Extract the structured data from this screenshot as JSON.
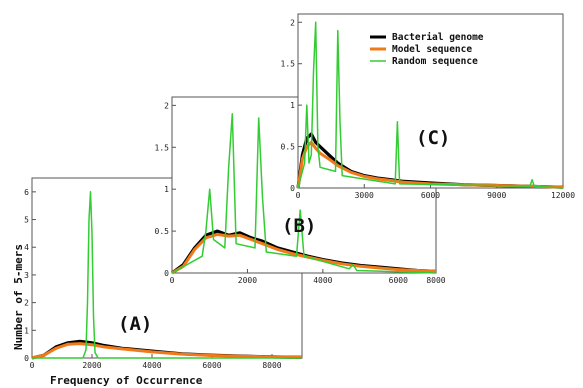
{
  "figure": {
    "xlabel": "Frequency of Occurrence",
    "ylabel": "Number of 5-mers"
  },
  "legend": {
    "entries": [
      {
        "label": "Bacterial genome",
        "color": "#000000"
      },
      {
        "label": "Model sequence",
        "color": "#f07a1a"
      },
      {
        "label": "Random sequence",
        "color": "#33cc33"
      }
    ]
  },
  "colors": {
    "genome": "#000000",
    "model": "#f07a1a",
    "random": "#33cc33"
  },
  "chart_data": [
    {
      "type": "line",
      "panel_label": "(A)",
      "xlim": [
        0,
        9000
      ],
      "ylim": [
        0,
        6.5
      ],
      "xticks": [
        "0",
        "2000",
        "4000",
        "6000",
        "8000"
      ],
      "yticks": [
        "0",
        "1",
        "2",
        "3",
        "4",
        "5",
        "6"
      ],
      "series": [
        {
          "name": "Bacterial genome",
          "x": [
            0,
            400,
            800,
            1200,
            1600,
            2000,
            2400,
            3000,
            4000,
            5000,
            6000,
            7000,
            8000,
            9000
          ],
          "values": [
            0,
            0.1,
            0.4,
            0.55,
            0.6,
            0.55,
            0.45,
            0.35,
            0.25,
            0.15,
            0.1,
            0.07,
            0.04,
            0.02
          ]
        },
        {
          "name": "Model sequence",
          "x": [
            0,
            400,
            800,
            1200,
            1600,
            2000,
            2400,
            3000,
            4000,
            5000,
            6000,
            7000,
            8000,
            9000
          ],
          "values": [
            0,
            0.1,
            0.35,
            0.5,
            0.52,
            0.48,
            0.4,
            0.33,
            0.22,
            0.14,
            0.09,
            0.06,
            0.04,
            0.02
          ]
        },
        {
          "name": "Random sequence",
          "x": [
            0,
            1700,
            1800,
            1850,
            1900,
            1950,
            2000,
            2050,
            2100,
            2200,
            9000
          ],
          "values": [
            0,
            0,
            0.3,
            2.0,
            5.0,
            6.0,
            4.5,
            1.5,
            0.2,
            0,
            0
          ]
        }
      ]
    },
    {
      "type": "line",
      "panel_label": "(B)",
      "xlim": [
        0,
        7000
      ],
      "ylim": [
        0,
        2.1
      ],
      "xticks": [
        "0",
        "2000",
        "4000",
        "6000",
        "8000"
      ],
      "yticks": [
        "0",
        "0.5",
        "1",
        "1.5",
        "2"
      ],
      "series": [
        {
          "name": "Bacterial genome",
          "x": [
            0,
            300,
            600,
            900,
            1200,
            1500,
            1800,
            2100,
            2400,
            2800,
            3200,
            3600,
            4000,
            4500,
            5000,
            5500,
            6000,
            6500,
            7000
          ],
          "values": [
            0,
            0.1,
            0.3,
            0.45,
            0.5,
            0.45,
            0.48,
            0.42,
            0.38,
            0.3,
            0.25,
            0.2,
            0.16,
            0.12,
            0.09,
            0.07,
            0.05,
            0.03,
            0.02
          ]
        },
        {
          "name": "Model sequence",
          "x": [
            0,
            300,
            600,
            900,
            1200,
            1500,
            1800,
            2100,
            2400,
            2800,
            3200,
            3600,
            4000,
            4500,
            5000,
            5500,
            6000,
            6500,
            7000
          ],
          "values": [
            0,
            0.08,
            0.28,
            0.42,
            0.46,
            0.44,
            0.45,
            0.4,
            0.35,
            0.28,
            0.23,
            0.19,
            0.15,
            0.11,
            0.08,
            0.06,
            0.04,
            0.03,
            0.02
          ]
        },
        {
          "name": "Random sequence",
          "x": [
            0,
            800,
            900,
            1000,
            1100,
            1400,
            1500,
            1600,
            1700,
            2200,
            2300,
            2400,
            2500,
            3300,
            3400,
            3500,
            4700,
            4800,
            4900,
            7000
          ],
          "values": [
            0,
            0.2,
            0.5,
            1.0,
            0.4,
            0.3,
            1.25,
            1.9,
            0.35,
            0.3,
            1.85,
            0.9,
            0.25,
            0.2,
            0.75,
            0.2,
            0.05,
            0.1,
            0.03,
            0
          ]
        }
      ]
    },
    {
      "type": "line",
      "panel_label": "(C)",
      "xlim": [
        0,
        12000
      ],
      "ylim": [
        0,
        2.1
      ],
      "xticks": [
        "0",
        "3000",
        "6000",
        "9000",
        "12000"
      ],
      "yticks": [
        "0",
        "0.5",
        "1",
        "1.5",
        "2"
      ],
      "series": [
        {
          "name": "Bacterial genome",
          "x": [
            0,
            200,
            400,
            600,
            800,
            1000,
            1400,
            1800,
            2400,
            3000,
            3600,
            4200,
            4800,
            6000,
            7500,
            9000,
            10500,
            12000
          ],
          "values": [
            0,
            0.4,
            0.6,
            0.65,
            0.55,
            0.5,
            0.4,
            0.3,
            0.2,
            0.15,
            0.12,
            0.1,
            0.08,
            0.06,
            0.04,
            0.03,
            0.02,
            0.01
          ]
        },
        {
          "name": "Model sequence",
          "x": [
            0,
            200,
            400,
            600,
            800,
            1000,
            1400,
            1800,
            2400,
            3000,
            3600,
            4200,
            4800,
            6000,
            7500,
            9000,
            10500,
            12000
          ],
          "values": [
            0,
            0.35,
            0.5,
            0.55,
            0.48,
            0.42,
            0.35,
            0.27,
            0.19,
            0.14,
            0.11,
            0.09,
            0.07,
            0.05,
            0.04,
            0.03,
            0.02,
            0.01
          ]
        },
        {
          "name": "Random sequence",
          "x": [
            0,
            300,
            400,
            500,
            600,
            700,
            800,
            900,
            1000,
            1700,
            1800,
            1900,
            2000,
            4400,
            4500,
            4600,
            10500,
            10600,
            10700,
            12000
          ],
          "values": [
            0,
            0.3,
            1.0,
            0.3,
            0.4,
            1.4,
            2.0,
            0.5,
            0.25,
            0.2,
            1.9,
            0.8,
            0.15,
            0.05,
            0.8,
            0.05,
            0.02,
            0.1,
            0.02,
            0
          ]
        }
      ]
    }
  ]
}
